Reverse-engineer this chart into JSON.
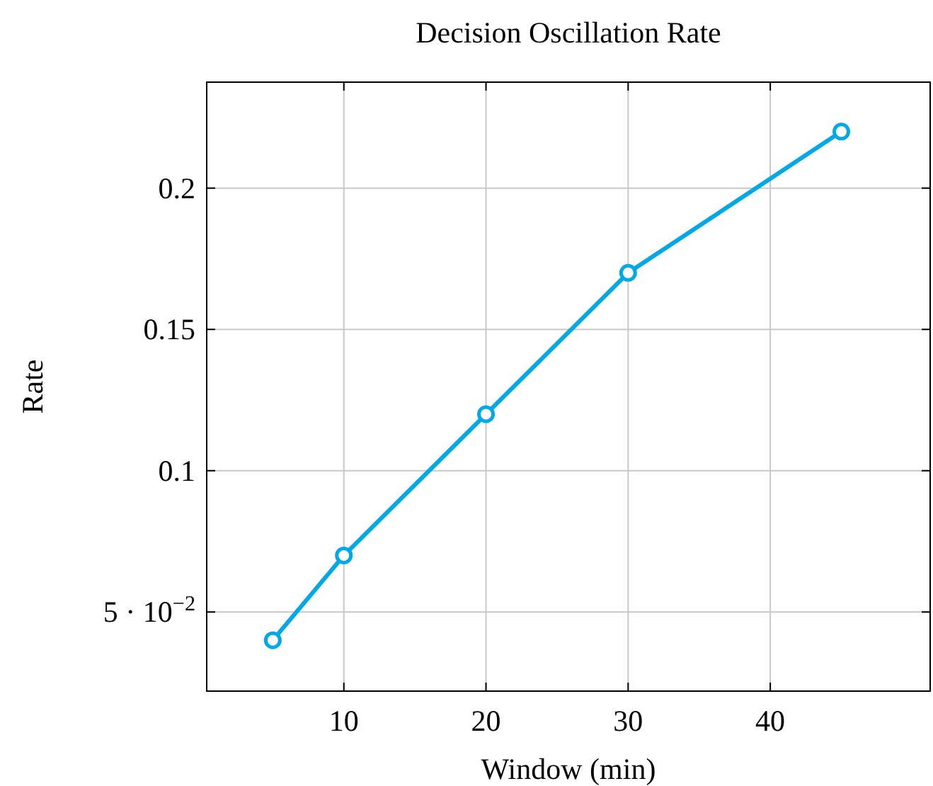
{
  "chart_data": {
    "type": "line",
    "title": "Decision Oscillation Rate",
    "xlabel": "Window (min)",
    "ylabel": "Rate",
    "x": [
      5,
      10,
      20,
      30,
      45
    ],
    "series": [
      {
        "color": "#00a8e8",
        "values": [
          0.04,
          0.07,
          0.12,
          0.17,
          0.22
        ]
      }
    ],
    "xlim": [
      0.35,
      51.25
    ],
    "ylim": [
      0.022,
      0.2375
    ],
    "xticks": [
      10,
      20,
      30,
      40
    ],
    "yticks": [
      {
        "value": 0.05,
        "label": "5 · 10$^{−2}$"
      },
      0.1,
      0.15,
      0.2
    ],
    "grid": true,
    "marker": "circle",
    "line_style": "solid"
  }
}
